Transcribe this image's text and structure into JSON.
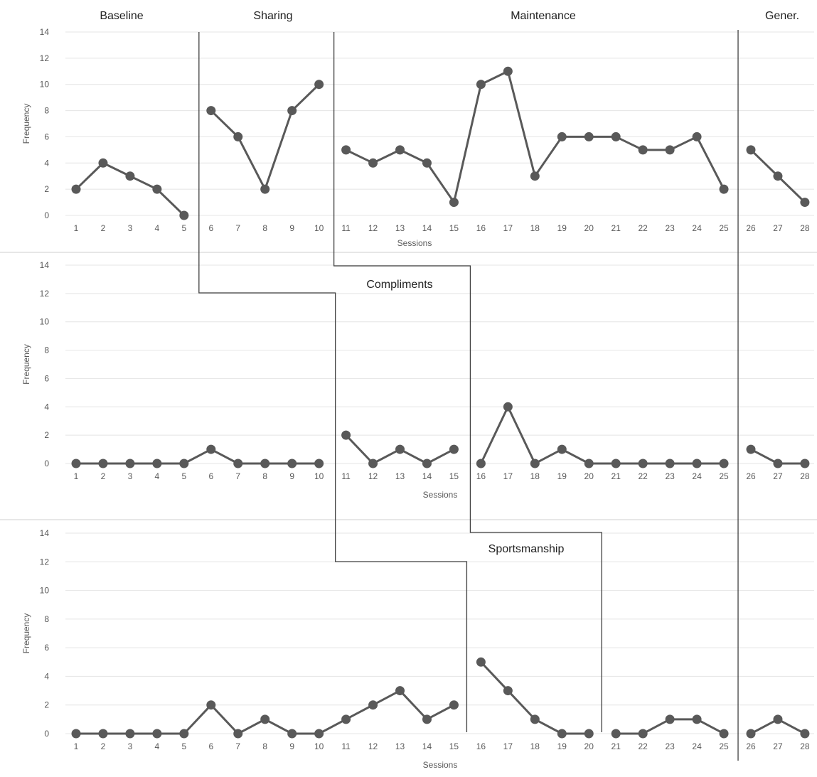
{
  "chart_data": {
    "type": "line",
    "colors": {
      "series": "#595959",
      "phase_line": "#404040",
      "grid": "#e4e4e4"
    },
    "phases": [
      "Baseline",
      "Sharing",
      "Maintenance",
      "Gener."
    ],
    "panels": [
      {
        "name": "",
        "xlabel": "Sessions",
        "ylabel": "Frequency",
        "ylim": [
          0,
          14
        ],
        "yticks": [
          0,
          2,
          4,
          6,
          8,
          10,
          12,
          14
        ],
        "x": [
          1,
          2,
          3,
          4,
          5,
          6,
          7,
          8,
          9,
          10,
          11,
          12,
          13,
          14,
          15,
          16,
          17,
          18,
          19,
          20,
          21,
          22,
          23,
          24,
          25,
          26,
          27,
          28
        ],
        "phase_changes": [
          5.5,
          10.5,
          25.5
        ],
        "segments": [
          {
            "x": [
              1,
              2,
              3,
              4,
              5
            ],
            "y": [
              2,
              4,
              3,
              2,
              0
            ]
          },
          {
            "x": [
              6,
              7,
              8,
              9,
              10
            ],
            "y": [
              8,
              6,
              2,
              8,
              10
            ]
          },
          {
            "x": [
              11,
              12,
              13,
              14,
              15,
              16,
              17,
              18,
              19,
              20,
              21,
              22,
              23,
              24,
              25
            ],
            "y": [
              5,
              4,
              5,
              4,
              1,
              10,
              11,
              3,
              6,
              6,
              6,
              5,
              5,
              6,
              2
            ]
          },
          {
            "x": [
              26,
              27,
              28
            ],
            "y": [
              5,
              3,
              1
            ]
          }
        ]
      },
      {
        "name": "Compliments",
        "xlabel": "Sessions",
        "ylabel": "Frequency",
        "ylim": [
          0,
          14
        ],
        "yticks": [
          0,
          2,
          4,
          6,
          8,
          10,
          12,
          14
        ],
        "x": [
          1,
          2,
          3,
          4,
          5,
          6,
          7,
          8,
          9,
          10,
          11,
          12,
          13,
          14,
          15,
          16,
          17,
          18,
          19,
          20,
          21,
          22,
          23,
          24,
          25,
          26,
          27,
          28
        ],
        "phase_changes": [
          10.5,
          15.5,
          25.5
        ],
        "segments": [
          {
            "x": [
              1,
              2,
              3,
              4,
              5,
              6,
              7,
              8,
              9,
              10
            ],
            "y": [
              0,
              0,
              0,
              0,
              0,
              1,
              0,
              0,
              0,
              0
            ]
          },
          {
            "x": [
              11,
              12,
              13,
              14,
              15
            ],
            "y": [
              2,
              0,
              1,
              0,
              1
            ]
          },
          {
            "x": [
              16,
              17,
              18,
              19,
              20,
              21,
              22,
              23,
              24,
              25
            ],
            "y": [
              0,
              4,
              0,
              1,
              0,
              0,
              0,
              0,
              0,
              0
            ]
          },
          {
            "x": [
              26,
              27,
              28
            ],
            "y": [
              1,
              0,
              0
            ]
          }
        ]
      },
      {
        "name": "Sportsmanship",
        "xlabel": "Sessions",
        "ylabel": "Frequency",
        "ylim": [
          0,
          14
        ],
        "yticks": [
          0,
          2,
          4,
          6,
          8,
          10,
          12,
          14
        ],
        "x": [
          1,
          2,
          3,
          4,
          5,
          6,
          7,
          8,
          9,
          10,
          11,
          12,
          13,
          14,
          15,
          16,
          17,
          18,
          19,
          20,
          21,
          22,
          23,
          24,
          25,
          26,
          27,
          28
        ],
        "phase_changes": [
          15.5,
          20.5,
          25.5
        ],
        "segments": [
          {
            "x": [
              1,
              2,
              3,
              4,
              5,
              6,
              7,
              8,
              9,
              10,
              11,
              12,
              13,
              14,
              15
            ],
            "y": [
              0,
              0,
              0,
              0,
              0,
              2,
              0,
              1,
              0,
              0,
              1,
              2,
              3,
              1,
              2
            ]
          },
          {
            "x": [
              16,
              17,
              18,
              19,
              20
            ],
            "y": [
              5,
              3,
              1,
              0,
              0
            ]
          },
          {
            "x": [
              21,
              22,
              23,
              24,
              25
            ],
            "y": [
              0,
              0,
              1,
              1,
              0
            ]
          },
          {
            "x": [
              26,
              27,
              28
            ],
            "y": [
              0,
              1,
              0
            ]
          }
        ]
      }
    ]
  }
}
